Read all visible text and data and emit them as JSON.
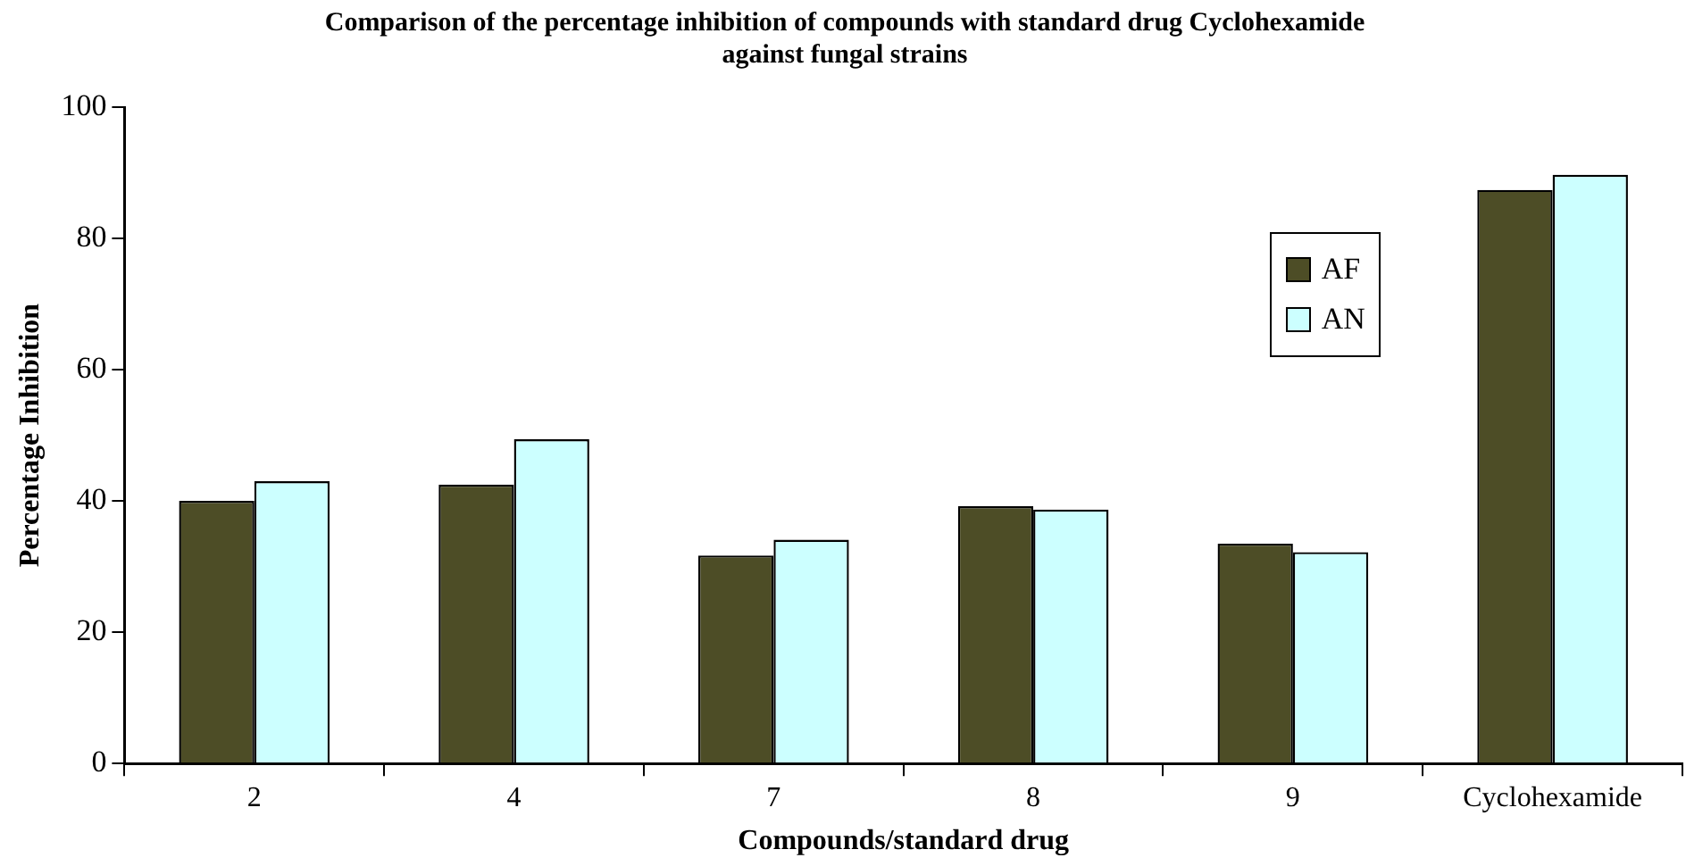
{
  "chart_data": {
    "type": "bar",
    "title": "Comparison of the percentage inhibition of compounds with standard drug Cyclohexamide against fungal strains",
    "xlabel": "Compounds/standard drug",
    "ylabel": "Percentage Inhibition",
    "categories": [
      "2",
      "4",
      "7",
      "8",
      "9",
      "Cyclohexamide"
    ],
    "series": [
      {
        "name": "AF",
        "color": "#4d4d26",
        "values": [
          40,
          42.5,
          31.7,
          39.2,
          33.5,
          87.4
        ]
      },
      {
        "name": "AN",
        "color": "#ccffff",
        "values": [
          43,
          49.4,
          34.1,
          38.7,
          32.2,
          89.7
        ]
      }
    ],
    "ylim": [
      0,
      100
    ],
    "yticks": [
      0,
      20,
      40,
      60,
      80,
      100
    ],
    "grid": false,
    "legend": "top right"
  }
}
